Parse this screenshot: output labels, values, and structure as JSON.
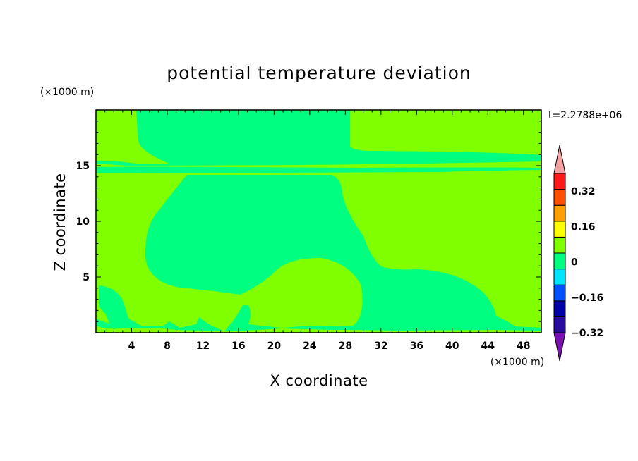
{
  "chart_data": {
    "type": "heatmap",
    "title": "potential temperature deviation",
    "xlabel": "X coordinate",
    "ylabel": "Z coordinate",
    "x_unit": "(×1000 m)",
    "y_unit": "(×1000 m)",
    "time_label": "t=2.2788e+06",
    "xlim": [
      0,
      50
    ],
    "ylim": [
      0,
      20
    ],
    "x_ticks": [
      4,
      8,
      12,
      16,
      20,
      24,
      28,
      32,
      36,
      40,
      44,
      48
    ],
    "y_ticks": [
      5,
      10,
      15
    ],
    "colorbar": {
      "levels": [
        -0.32,
        -0.24,
        -0.16,
        -0.08,
        0,
        0.08,
        0.16,
        0.24,
        0.32,
        0.4
      ],
      "labels": [
        "0.32",
        "0.16",
        "0",
        "−0.16",
        "−0.32"
      ],
      "label_values": [
        0.32,
        0.16,
        0,
        -0.16,
        -0.32
      ],
      "colors": [
        "#2a0aa0",
        "#0000a8",
        "#0050ff",
        "#00e6ff",
        "#00ff80",
        "#80ff00",
        "#ffff00",
        "#ffa000",
        "#ff5000",
        "#ff1a1a"
      ],
      "over_color": "#f4a2a2",
      "under_color": "#7a10b0"
    },
    "field": {
      "background_band": "0 to 0.08",
      "background_color": "#80ff00",
      "region_band": "-0.08 to 0",
      "region_color": "#00ff80"
    }
  }
}
